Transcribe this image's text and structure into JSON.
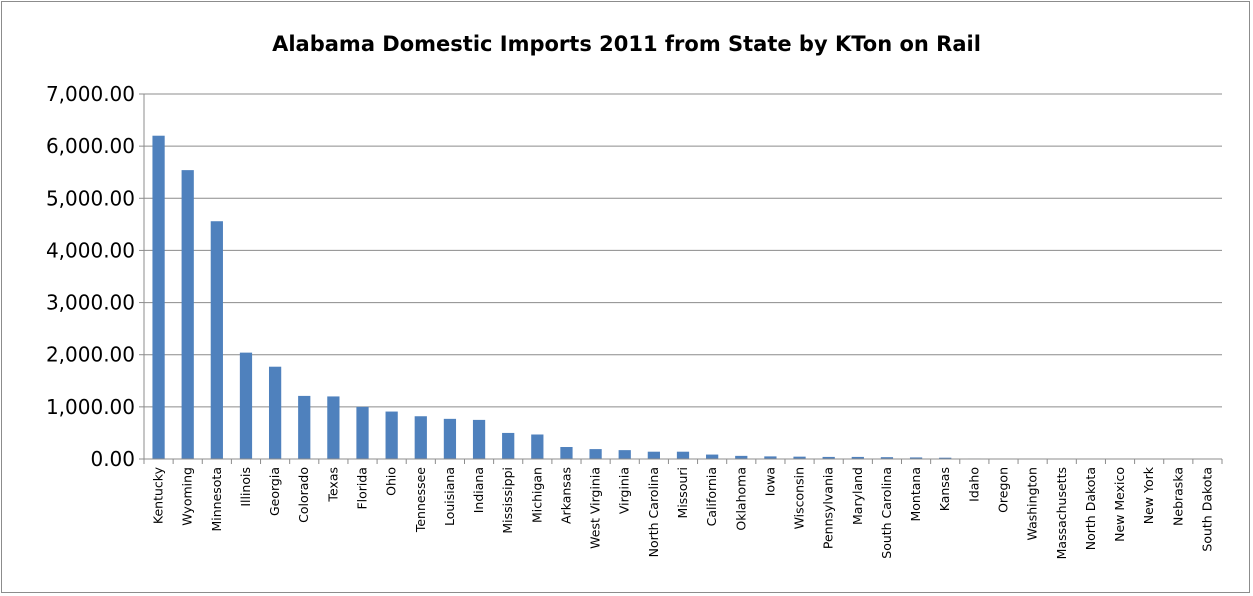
{
  "chart_data": {
    "type": "bar",
    "title": "Alabama Domestic Imports 2011 from State by KTon on Rail",
    "xlabel": "",
    "ylabel": "",
    "ylim": [
      0,
      7000
    ],
    "yticks": [
      "0.00",
      "1,000.00",
      "2,000.00",
      "3,000.00",
      "4,000.00",
      "5,000.00",
      "6,000.00",
      "7,000.00"
    ],
    "ytick_values": [
      0,
      1000,
      2000,
      3000,
      4000,
      5000,
      6000,
      7000
    ],
    "grid": true,
    "legend": "none",
    "bar_color": "#4f81bd",
    "categories": [
      "Kentucky",
      "Wyoming",
      "Minnesota",
      "Illinois",
      "Georgia",
      "Colorado",
      "Texas",
      "Florida",
      "Ohio",
      "Tennessee",
      "Louisiana",
      "Indiana",
      "Mississippi",
      "Michigan",
      "Arkansas",
      "West Virginia",
      "Virginia",
      "North Carolina",
      "Missouri",
      "California",
      "Oklahoma",
      "Iowa",
      "Wisconsin",
      "Pennsylvania",
      "Maryland",
      "South Carolina",
      "Montana",
      "Kansas",
      "Idaho",
      "Oregon",
      "Washington",
      "Massachusetts",
      "North Dakota",
      "New Mexico",
      "New York",
      "Nebraska",
      "South Dakota"
    ],
    "values": [
      6200,
      5540,
      4560,
      2040,
      1770,
      1210,
      1200,
      1000,
      910,
      820,
      770,
      750,
      500,
      470,
      230,
      190,
      170,
      140,
      140,
      85,
      60,
      50,
      45,
      40,
      40,
      35,
      30,
      25,
      10,
      5,
      4,
      3,
      3,
      3,
      2,
      2,
      2
    ]
  }
}
